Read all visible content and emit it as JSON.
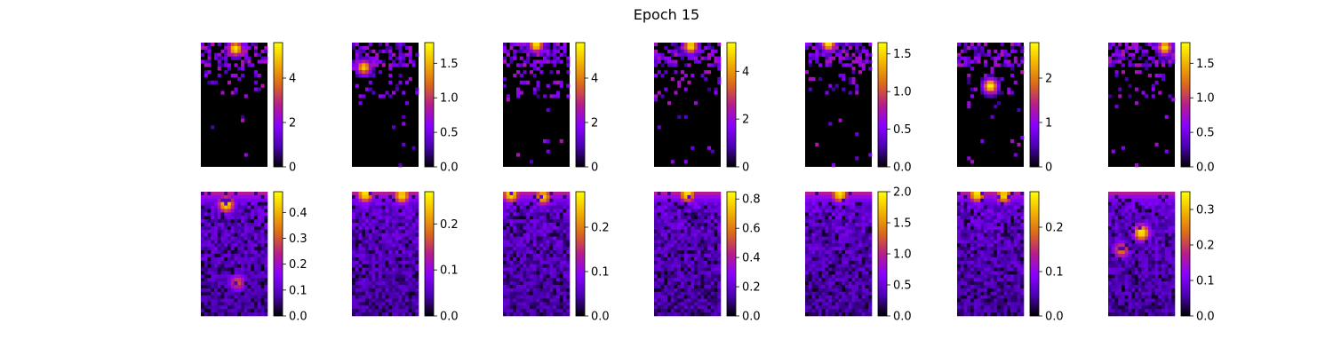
{
  "title": "Epoch 15",
  "colormap": {
    "name": "gnuplot",
    "stops": [
      "#000000",
      "#4b00b4",
      "#8a00ff",
      "#b71d8a",
      "#db6a1a",
      "#f2b300",
      "#ffff00"
    ]
  },
  "chart_data": [
    {
      "type": "heatmap",
      "row": 0,
      "col": 0,
      "pattern": "sparse",
      "vmin": 0,
      "vmax": 5.6,
      "hotspots": [
        {
          "x": 0.52,
          "y": 0.05,
          "v": 5.4
        }
      ],
      "colorbar_ticks": [
        "0",
        "2",
        "4"
      ]
    },
    {
      "type": "heatmap",
      "row": 0,
      "col": 1,
      "pattern": "sparse",
      "vmin": 0,
      "vmax": 1.8,
      "hotspots": [
        {
          "x": 0.18,
          "y": 0.2,
          "v": 1.6
        }
      ],
      "colorbar_ticks": [
        "0.0",
        "0.5",
        "1.0",
        "1.5"
      ]
    },
    {
      "type": "heatmap",
      "row": 0,
      "col": 2,
      "pattern": "sparse",
      "vmin": 0,
      "vmax": 5.6,
      "hotspots": [
        {
          "x": 0.5,
          "y": 0.02,
          "v": 5.4
        }
      ],
      "colorbar_ticks": [
        "0",
        "2",
        "4"
      ]
    },
    {
      "type": "heatmap",
      "row": 0,
      "col": 3,
      "pattern": "sparse",
      "vmin": 0,
      "vmax": 5.2,
      "hotspots": [
        {
          "x": 0.55,
          "y": 0.03,
          "v": 5.0
        }
      ],
      "colorbar_ticks": [
        "0",
        "2",
        "4"
      ]
    },
    {
      "type": "heatmap",
      "row": 0,
      "col": 4,
      "pattern": "sparse",
      "vmin": 0,
      "vmax": 1.65,
      "hotspots": [
        {
          "x": 0.35,
          "y": 0.01,
          "v": 1.6
        }
      ],
      "colorbar_ticks": [
        "0.0",
        "0.5",
        "1.0",
        "1.5"
      ]
    },
    {
      "type": "heatmap",
      "row": 0,
      "col": 5,
      "pattern": "sparse",
      "vmin": 0,
      "vmax": 2.8,
      "hotspots": [
        {
          "x": 0.5,
          "y": 0.35,
          "v": 2.8
        }
      ],
      "colorbar_ticks": [
        "0",
        "1",
        "2"
      ]
    },
    {
      "type": "heatmap",
      "row": 0,
      "col": 6,
      "pattern": "sparse",
      "vmin": 0,
      "vmax": 1.8,
      "hotspots": [
        {
          "x": 0.85,
          "y": 0.04,
          "v": 1.7
        }
      ],
      "colorbar_ticks": [
        "0.0",
        "0.5",
        "1.0",
        "1.5"
      ]
    },
    {
      "type": "heatmap",
      "row": 1,
      "col": 0,
      "pattern": "smooth",
      "vmin": 0,
      "vmax": 0.48,
      "hotspots": [
        {
          "x": 0.38,
          "y": 0.1,
          "v": 0.46
        },
        {
          "x": 0.55,
          "y": 0.73,
          "v": 0.3
        }
      ],
      "colorbar_ticks": [
        "0.0",
        "0.1",
        "0.2",
        "0.3",
        "0.4"
      ]
    },
    {
      "type": "heatmap",
      "row": 1,
      "col": 1,
      "pattern": "smooth",
      "vmin": 0,
      "vmax": 0.27,
      "hotspots": [
        {
          "x": 0.2,
          "y": 0.02,
          "v": 0.26
        },
        {
          "x": 0.75,
          "y": 0.03,
          "v": 0.25
        }
      ],
      "colorbar_ticks": [
        "0.0",
        "0.1",
        "0.2"
      ]
    },
    {
      "type": "heatmap",
      "row": 1,
      "col": 2,
      "pattern": "smooth",
      "vmin": 0,
      "vmax": 0.28,
      "hotspots": [
        {
          "x": 0.12,
          "y": 0.02,
          "v": 0.27
        },
        {
          "x": 0.6,
          "y": 0.04,
          "v": 0.25
        }
      ],
      "colorbar_ticks": [
        "0.0",
        "0.1",
        "0.2"
      ]
    },
    {
      "type": "heatmap",
      "row": 1,
      "col": 3,
      "pattern": "smooth",
      "vmin": 0,
      "vmax": 0.85,
      "hotspots": [
        {
          "x": 0.5,
          "y": 0.02,
          "v": 0.8
        }
      ],
      "colorbar_ticks": [
        "0.0",
        "0.2",
        "0.4",
        "0.6",
        "0.8"
      ]
    },
    {
      "type": "heatmap",
      "row": 1,
      "col": 4,
      "pattern": "smooth",
      "vmin": 0,
      "vmax": 2.0,
      "hotspots": [
        {
          "x": 0.52,
          "y": 0.02,
          "v": 1.9
        }
      ],
      "colorbar_ticks": [
        "0.0",
        "0.5",
        "1.0",
        "1.5",
        "2.0"
      ]
    },
    {
      "type": "heatmap",
      "row": 1,
      "col": 5,
      "pattern": "smooth",
      "vmin": 0,
      "vmax": 0.28,
      "hotspots": [
        {
          "x": 0.3,
          "y": 0.02,
          "v": 0.27
        },
        {
          "x": 0.7,
          "y": 0.03,
          "v": 0.26
        }
      ],
      "colorbar_ticks": [
        "0.0",
        "0.1",
        "0.2"
      ]
    },
    {
      "type": "heatmap",
      "row": 1,
      "col": 6,
      "pattern": "smooth",
      "vmin": 0,
      "vmax": 0.35,
      "hotspots": [
        {
          "x": 0.5,
          "y": 0.33,
          "v": 0.34
        },
        {
          "x": 0.2,
          "y": 0.47,
          "v": 0.25
        }
      ],
      "colorbar_ticks": [
        "0.0",
        "0.1",
        "0.2",
        "0.3"
      ]
    }
  ]
}
